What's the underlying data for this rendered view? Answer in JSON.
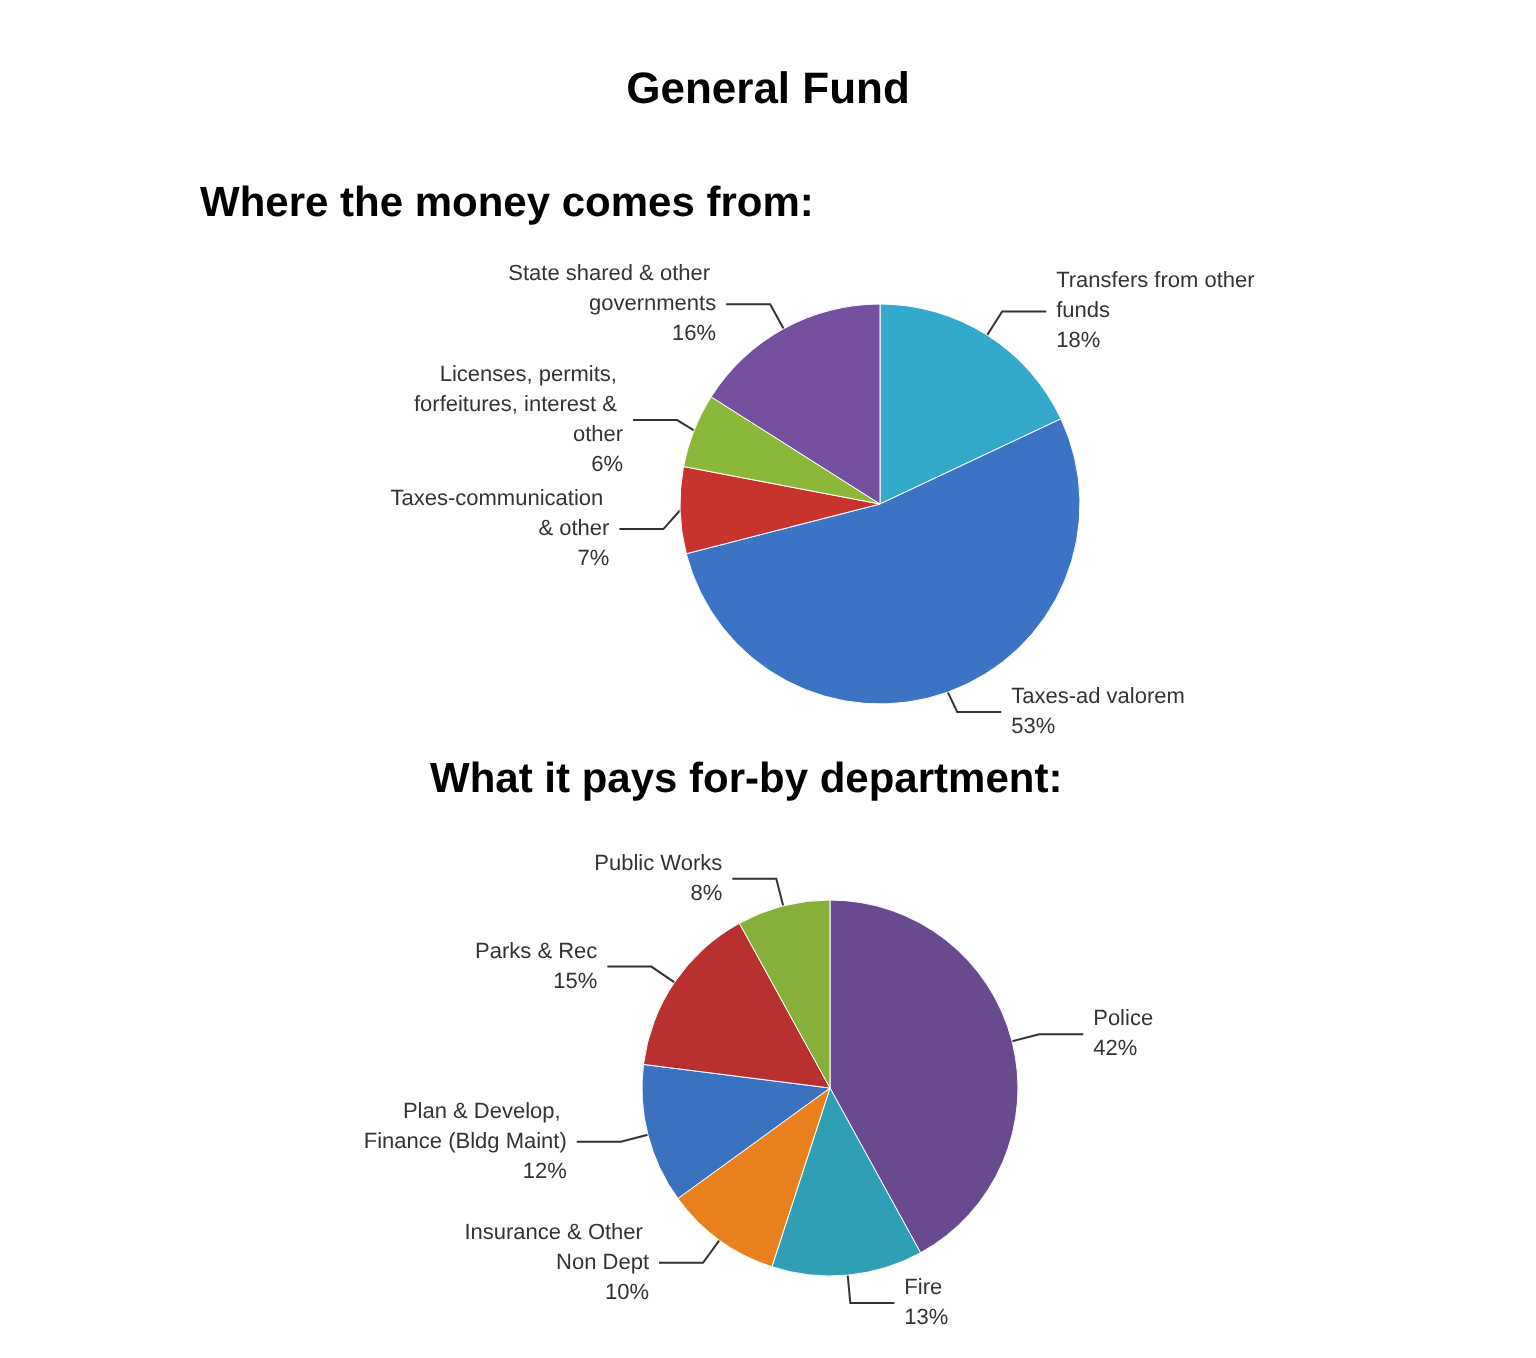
{
  "chart_data": [
    {
      "type": "pie",
      "title": "General Fund",
      "subtitle": "Where the money comes from:",
      "categories": [
        "Transfers from other funds",
        "Taxes-ad valorem",
        "Taxes-communication & other",
        "Licenses, permits, forfeitures, interest & other",
        "State shared & other governments"
      ],
      "values": [
        18,
        53,
        7,
        6,
        16
      ],
      "colors": [
        "#33aacc",
        "#3c73c4",
        "#c8332e",
        "#8cb83a",
        "#74509e"
      ],
      "value_labels": [
        "18%",
        "53%",
        "7%",
        "6%",
        "16%"
      ]
    },
    {
      "type": "pie",
      "title": "What it pays for-by department:",
      "categories": [
        "Police",
        "Fire",
        "Insurance & Other Non Dept",
        "Plan & Develop, Finance (Bldg Maint)",
        "Parks & Rec",
        "Public Works"
      ],
      "values": [
        42,
        13,
        10,
        12,
        15,
        8
      ],
      "colors": [
        "#6a4a8e",
        "#2f9fb5",
        "#e8801e",
        "#3a72c0",
        "#b83030",
        "#86b03a"
      ],
      "value_labels": [
        "42%",
        "13%",
        "10%",
        "12%",
        "15%",
        "8%"
      ]
    }
  ]
}
